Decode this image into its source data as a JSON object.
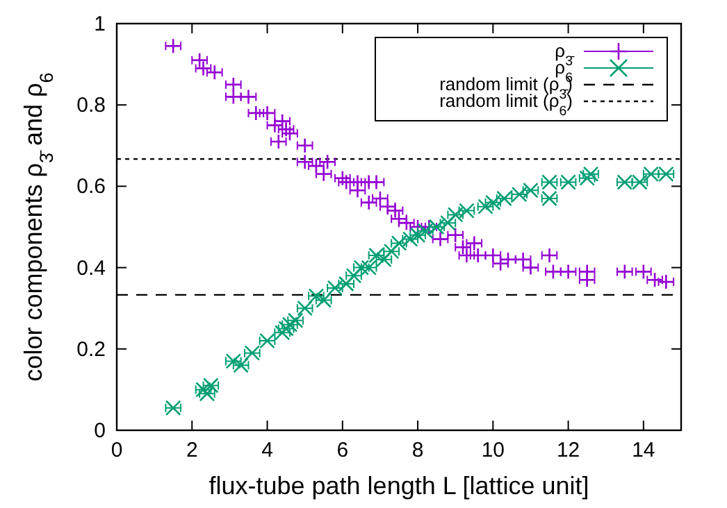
{
  "chart_data": {
    "type": "scatter",
    "xlabel": "flux-tube path length L [lattice unit]",
    "ylabel": "color components ρ$_{3̄}$ and ρ$_{6}$",
    "xlim": [
      0,
      15
    ],
    "xticks": [
      0,
      2,
      4,
      6,
      8,
      10,
      12,
      14
    ],
    "ylim": [
      0,
      1
    ],
    "yticks": [
      0,
      0.2,
      0.4,
      0.6,
      0.8,
      1
    ],
    "grid": false,
    "legend": "top right",
    "series": [
      {
        "name": "ρ$_{3̄}$",
        "color": "#9400d3",
        "marker": "cross",
        "x": [
          1.5,
          2.2,
          2.3,
          2.6,
          3.1,
          3.1,
          3.5,
          3.7,
          4.0,
          4.2,
          4.4,
          4.5,
          4.6,
          4.3,
          5.0,
          5.0,
          5.3,
          5.6,
          5.5,
          6.0,
          6.1,
          6.4,
          6.4,
          6.7,
          6.9,
          6.7,
          7.0,
          7.2,
          7.4,
          7.5,
          7.7,
          8.0,
          8.3,
          8.6,
          9.0,
          9.2,
          9.5,
          9.3,
          9.6,
          10.0,
          10.2,
          10.4,
          10.8,
          11.0,
          11.5,
          11.6,
          12.0,
          12.5,
          12.5,
          13.5,
          14.0,
          14.3,
          14.6
        ],
        "values": [
          0.945,
          0.91,
          0.89,
          0.88,
          0.85,
          0.82,
          0.82,
          0.78,
          0.78,
          0.75,
          0.76,
          0.74,
          0.73,
          0.71,
          0.7,
          0.66,
          0.65,
          0.66,
          0.63,
          0.62,
          0.61,
          0.61,
          0.59,
          0.61,
          0.61,
          0.56,
          0.57,
          0.55,
          0.54,
          0.52,
          0.51,
          0.5,
          0.5,
          0.47,
          0.48,
          0.45,
          0.46,
          0.43,
          0.43,
          0.43,
          0.41,
          0.42,
          0.42,
          0.4,
          0.43,
          0.39,
          0.39,
          0.39,
          0.37,
          0.39,
          0.39,
          0.37,
          0.365
        ],
        "xerrors": [
          0.2,
          0.2,
          0.2,
          0.2,
          0.2,
          0.2,
          0.2,
          0.2,
          0.2,
          0.2,
          0.2,
          0.2,
          0.2,
          0.2,
          0.2,
          0.2,
          0.2,
          0.2,
          0.2,
          0.2,
          0.2,
          0.2,
          0.2,
          0.2,
          0.2,
          0.2,
          0.2,
          0.2,
          0.2,
          0.2,
          0.2,
          0.2,
          0.2,
          0.2,
          0.2,
          0.2,
          0.2,
          0.2,
          0.2,
          0.2,
          0.2,
          0.2,
          0.2,
          0.2,
          0.2,
          0.2,
          0.2,
          0.2,
          0.2,
          0.2,
          0.2,
          0.2,
          0.2
        ]
      },
      {
        "name": "ρ$_{6}$",
        "color": "#009e73",
        "marker": "x",
        "x": [
          1.5,
          2.3,
          2.4,
          2.5,
          3.1,
          3.3,
          3.6,
          4.0,
          4.5,
          4.4,
          4.6,
          4.75,
          5.0,
          5.3,
          5.5,
          5.8,
          6.1,
          6.3,
          6.5,
          6.7,
          6.9,
          7.1,
          7.3,
          7.5,
          7.8,
          8.0,
          8.2,
          8.5,
          8.8,
          9.0,
          9.3,
          9.8,
          10.0,
          10.3,
          10.7,
          11.0,
          11.5,
          11.5,
          12.0,
          12.5,
          12.6,
          13.5,
          13.9,
          14.2,
          14.6
        ],
        "values": [
          0.055,
          0.1,
          0.09,
          0.11,
          0.17,
          0.16,
          0.19,
          0.22,
          0.25,
          0.24,
          0.26,
          0.27,
          0.3,
          0.33,
          0.32,
          0.35,
          0.36,
          0.38,
          0.4,
          0.4,
          0.43,
          0.42,
          0.44,
          0.46,
          0.47,
          0.48,
          0.49,
          0.5,
          0.51,
          0.53,
          0.54,
          0.55,
          0.56,
          0.57,
          0.58,
          0.59,
          0.57,
          0.61,
          0.61,
          0.62,
          0.63,
          0.61,
          0.61,
          0.63,
          0.63
        ],
        "xerrors": [
          0.2,
          0.2,
          0.2,
          0.2,
          0.2,
          0.2,
          0.2,
          0.2,
          0.2,
          0.2,
          0.2,
          0.2,
          0.2,
          0.2,
          0.2,
          0.2,
          0.2,
          0.2,
          0.2,
          0.2,
          0.2,
          0.2,
          0.2,
          0.2,
          0.2,
          0.2,
          0.2,
          0.2,
          0.2,
          0.2,
          0.2,
          0.2,
          0.2,
          0.2,
          0.2,
          0.2,
          0.2,
          0.2,
          0.2,
          0.2,
          0.2,
          0.2,
          0.2,
          0.2,
          0.2
        ]
      }
    ],
    "ref_lines": [
      {
        "axis": "y",
        "value": 0.333,
        "label": "random limit (ρ$_{3̄}$)",
        "color": "#000000",
        "line_style": "dashed"
      },
      {
        "axis": "y",
        "value": 0.667,
        "label": "random limit (ρ$_{6}$)",
        "color": "#000000",
        "line_style": "dotted"
      }
    ]
  }
}
